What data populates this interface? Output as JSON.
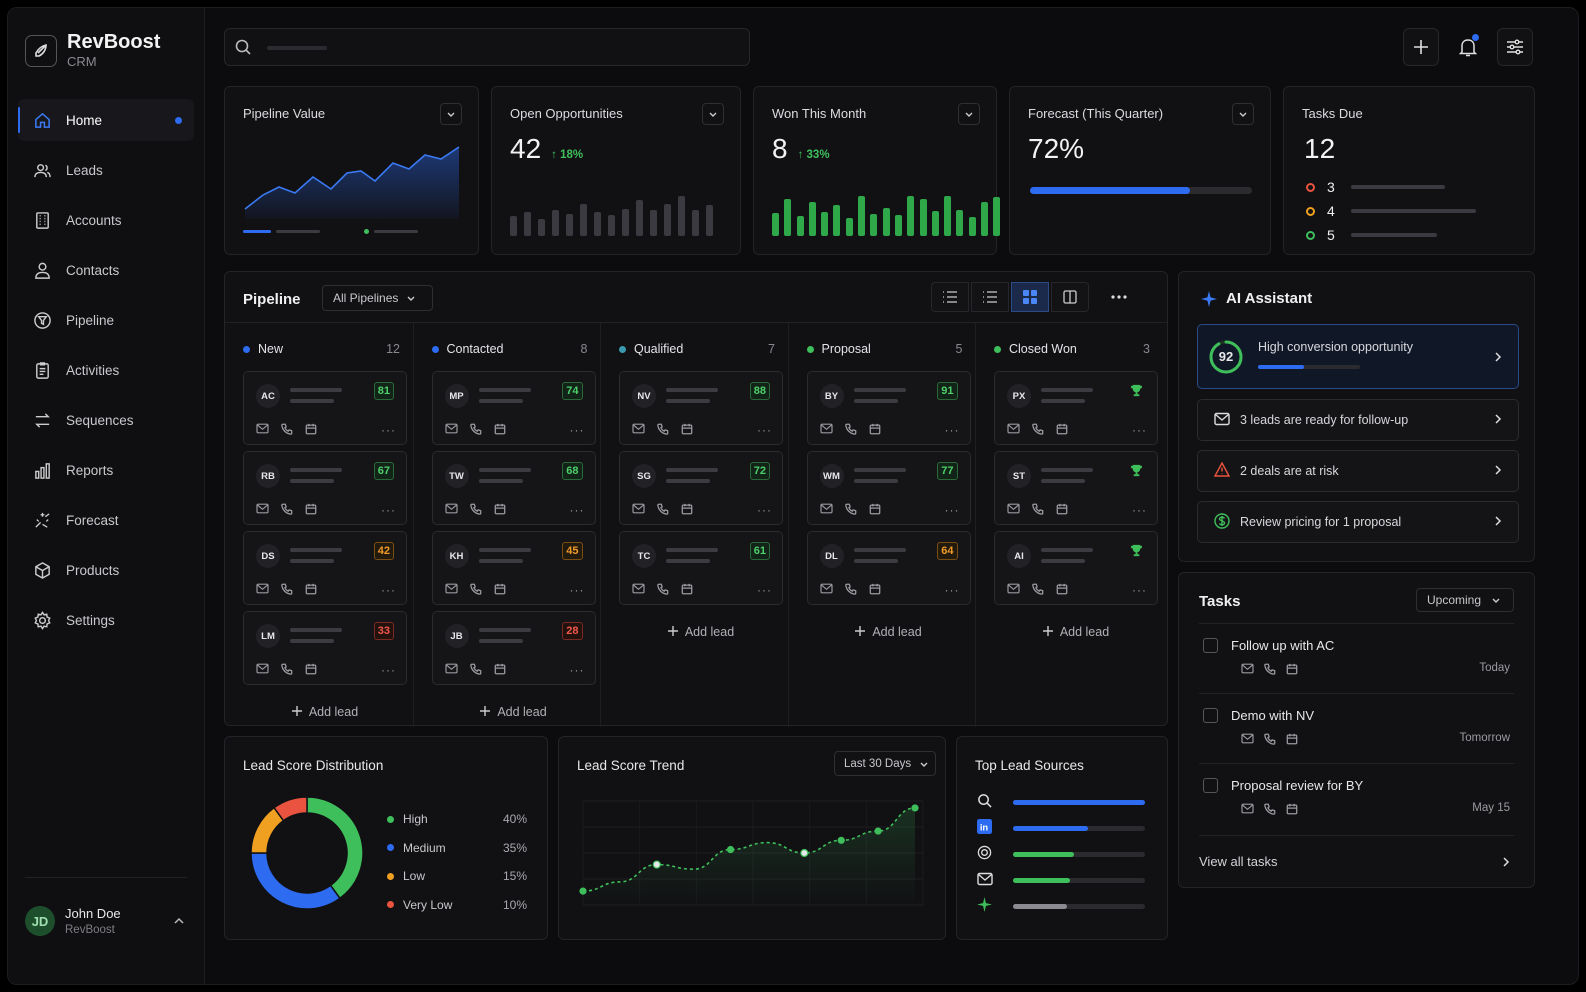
{
  "brand": {
    "name": "RevBoost",
    "sub": "CRM"
  },
  "nav": [
    {
      "label": "Home",
      "icon": "home-icon",
      "active": true
    },
    {
      "label": "Leads",
      "icon": "users-icon"
    },
    {
      "label": "Accounts",
      "icon": "building-icon"
    },
    {
      "label": "Contacts",
      "icon": "user-icon"
    },
    {
      "label": "Pipeline",
      "icon": "funnel-icon"
    },
    {
      "label": "Activities",
      "icon": "clipboard-icon"
    },
    {
      "label": "Sequences",
      "icon": "arrows-icon"
    },
    {
      "label": "Reports",
      "icon": "bar-chart-icon"
    },
    {
      "label": "Forecast",
      "icon": "sparkles-icon"
    },
    {
      "label": "Products",
      "icon": "box-icon"
    },
    {
      "label": "Settings",
      "icon": "gear-icon"
    }
  ],
  "user": {
    "initials": "JD",
    "name": "John Doe",
    "org": "RevBoost"
  },
  "search": {
    "placeholder": ""
  },
  "kpis": {
    "pipeline_value": {
      "title": "Pipeline Value"
    },
    "open_opps": {
      "title": "Open Opportunities",
      "value": "42",
      "delta": "↑ 18%",
      "bars": [
        0.45,
        0.55,
        0.38,
        0.6,
        0.5,
        0.72,
        0.55,
        0.48,
        0.62,
        0.82,
        0.58,
        0.72,
        0.9,
        0.6,
        0.7
      ]
    },
    "won_month": {
      "title": "Won This Month",
      "value": "8",
      "delta": "↑ 33%",
      "bars": [
        0.52,
        0.85,
        0.45,
        0.78,
        0.55,
        0.7,
        0.42,
        0.92,
        0.5,
        0.64,
        0.48,
        0.9,
        0.84,
        0.56,
        0.92,
        0.6,
        0.44,
        0.78,
        0.88
      ]
    },
    "forecast": {
      "title": "Forecast (This Quarter)",
      "value": "72%",
      "progress": 0.72
    },
    "tasks_due": {
      "title": "Tasks Due",
      "value": "12",
      "rows": [
        {
          "count": "3",
          "color": "#e9533f",
          "fill": 0.72
        },
        {
          "count": "4",
          "color": "#f0a020",
          "fill": 0.96
        },
        {
          "count": "5",
          "color": "#3fbf5b",
          "fill": 0.66
        }
      ]
    }
  },
  "pipeline": {
    "title": "Pipeline",
    "filter": "All Pipelines",
    "add_label": "Add lead",
    "columns": [
      {
        "name": "New",
        "count": "12",
        "color": "#2d6bf0",
        "leads": [
          {
            "initials": "AC",
            "score": "81",
            "tone": "g"
          },
          {
            "initials": "RB",
            "score": "67",
            "tone": "g"
          },
          {
            "initials": "DS",
            "score": "42",
            "tone": "o"
          },
          {
            "initials": "LM",
            "score": "33",
            "tone": "r"
          }
        ]
      },
      {
        "name": "Contacted",
        "count": "8",
        "color": "#2d6bf0",
        "leads": [
          {
            "initials": "MP",
            "score": "74",
            "tone": "g"
          },
          {
            "initials": "TW",
            "score": "68",
            "tone": "g"
          },
          {
            "initials": "KH",
            "score": "45",
            "tone": "o"
          },
          {
            "initials": "JB",
            "score": "28",
            "tone": "r"
          }
        ]
      },
      {
        "name": "Qualified",
        "count": "7",
        "color": "#3a9bb0",
        "leads": [
          {
            "initials": "NV",
            "score": "88",
            "tone": "g"
          },
          {
            "initials": "SG",
            "score": "72",
            "tone": "g"
          },
          {
            "initials": "TC",
            "score": "61",
            "tone": "g"
          }
        ]
      },
      {
        "name": "Proposal",
        "count": "5",
        "color": "#3fbf5b",
        "leads": [
          {
            "initials": "BY",
            "score": "91",
            "tone": "g"
          },
          {
            "initials": "WM",
            "score": "77",
            "tone": "g"
          },
          {
            "initials": "DL",
            "score": "64",
            "tone": "o"
          }
        ]
      },
      {
        "name": "Closed Won",
        "count": "3",
        "color": "#3fbf5b",
        "leads": [
          {
            "initials": "PX",
            "score": "",
            "tone": "trophy"
          },
          {
            "initials": "ST",
            "score": "",
            "tone": "trophy"
          },
          {
            "initials": "AI",
            "score": "",
            "tone": "trophy"
          }
        ]
      }
    ]
  },
  "ai": {
    "title": "AI Assistant",
    "highlight": {
      "score": "92",
      "label": "High conversion opportunity"
    },
    "items": [
      {
        "icon": "mail-icon",
        "label": "3 leads are ready for follow-up"
      },
      {
        "icon": "warning-icon",
        "label": "2 deals are at risk"
      },
      {
        "icon": "dollar-icon",
        "label": "Review pricing for 1 proposal"
      }
    ]
  },
  "tasks": {
    "title": "Tasks",
    "filter": "Upcoming",
    "items": [
      {
        "name": "Follow up with AC",
        "when": "Today"
      },
      {
        "name": "Demo with NV",
        "when": "Tomorrow"
      },
      {
        "name": "Proposal review for BY",
        "when": "May 15"
      }
    ],
    "view_all": "View all tasks"
  },
  "lead_score_dist": {
    "title": "Lead Score Distribution"
  },
  "lead_score_trend": {
    "title": "Lead Score Trend",
    "filter": "Last 30 Days"
  },
  "top_sources": {
    "title": "Top Lead Sources",
    "rows": [
      {
        "icon": "search-icon",
        "fill": 1.0,
        "color": "#2d6bf0"
      },
      {
        "icon": "linkedin-icon",
        "fill": 0.57,
        "color": "#2d6bf0"
      },
      {
        "icon": "target-icon",
        "fill": 0.46,
        "color": "#3fbf5b"
      },
      {
        "icon": "mail-icon",
        "fill": 0.43,
        "color": "#3fbf5b"
      },
      {
        "icon": "star-icon",
        "fill": 0.41,
        "color": "#8a8a90"
      }
    ]
  },
  "chart_data": [
    {
      "type": "pie",
      "title": "Lead Score Distribution",
      "categories": [
        "High",
        "Medium",
        "Low",
        "Very Low"
      ],
      "values": [
        40,
        35,
        15,
        10
      ],
      "labels": [
        "40%",
        "35%",
        "15%",
        "10%"
      ],
      "colors": [
        "#3fbf5b",
        "#2d6bf0",
        "#f0a020",
        "#e9533f"
      ]
    },
    {
      "type": "line",
      "title": "Lead Score Trend",
      "x": [
        1,
        2,
        3,
        4,
        5,
        6,
        7,
        8,
        9,
        10
      ],
      "series": [
        {
          "values": [
            12,
            20,
            35,
            31,
            48,
            54,
            45,
            56,
            64,
            84
          ]
        }
      ]
    }
  ]
}
